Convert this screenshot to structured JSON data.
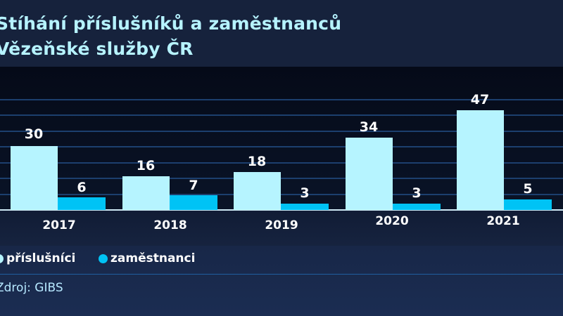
{
  "header": {
    "title_line1": "Stíhání příslušníků a zaměstnanců",
    "title_line2": "Vězeňské služby ČR"
  },
  "legend": {
    "items": [
      {
        "label": "příslušníci",
        "color": "#b6f4ff"
      },
      {
        "label": "zaměstnanci",
        "color": "#00c3f5"
      }
    ]
  },
  "source": "Zdroj: GIBS",
  "chart_data": {
    "type": "bar",
    "title": "Stíhání příslušníků a zaměstnanců Vězeňské služby ČR",
    "categories": [
      "2017",
      "2018",
      "2019",
      "2020",
      "2021"
    ],
    "series": [
      {
        "name": "příslušníci",
        "color": "#b6f4ff",
        "values": [
          30,
          16,
          18,
          34,
          47
        ]
      },
      {
        "name": "zaměstnanci",
        "color": "#00c3f5",
        "values": [
          6,
          7,
          3,
          3,
          5
        ]
      }
    ],
    "xlabel": "",
    "ylabel": "",
    "ylim": [
      0,
      52
    ],
    "grid": true,
    "legend_position": "bottom-left",
    "source": "Zdroj: GIBS"
  },
  "labels": {
    "c0": {
      "cat": "2017",
      "a": "30",
      "b": "6"
    },
    "c1": {
      "cat": "2018",
      "a": "16",
      "b": "7"
    },
    "c2": {
      "cat": "2019",
      "a": "18",
      "b": "3"
    },
    "c3": {
      "cat": "2020",
      "a": "34",
      "b": "3"
    },
    "c4": {
      "cat": "2021",
      "a": "47",
      "b": "5"
    }
  }
}
